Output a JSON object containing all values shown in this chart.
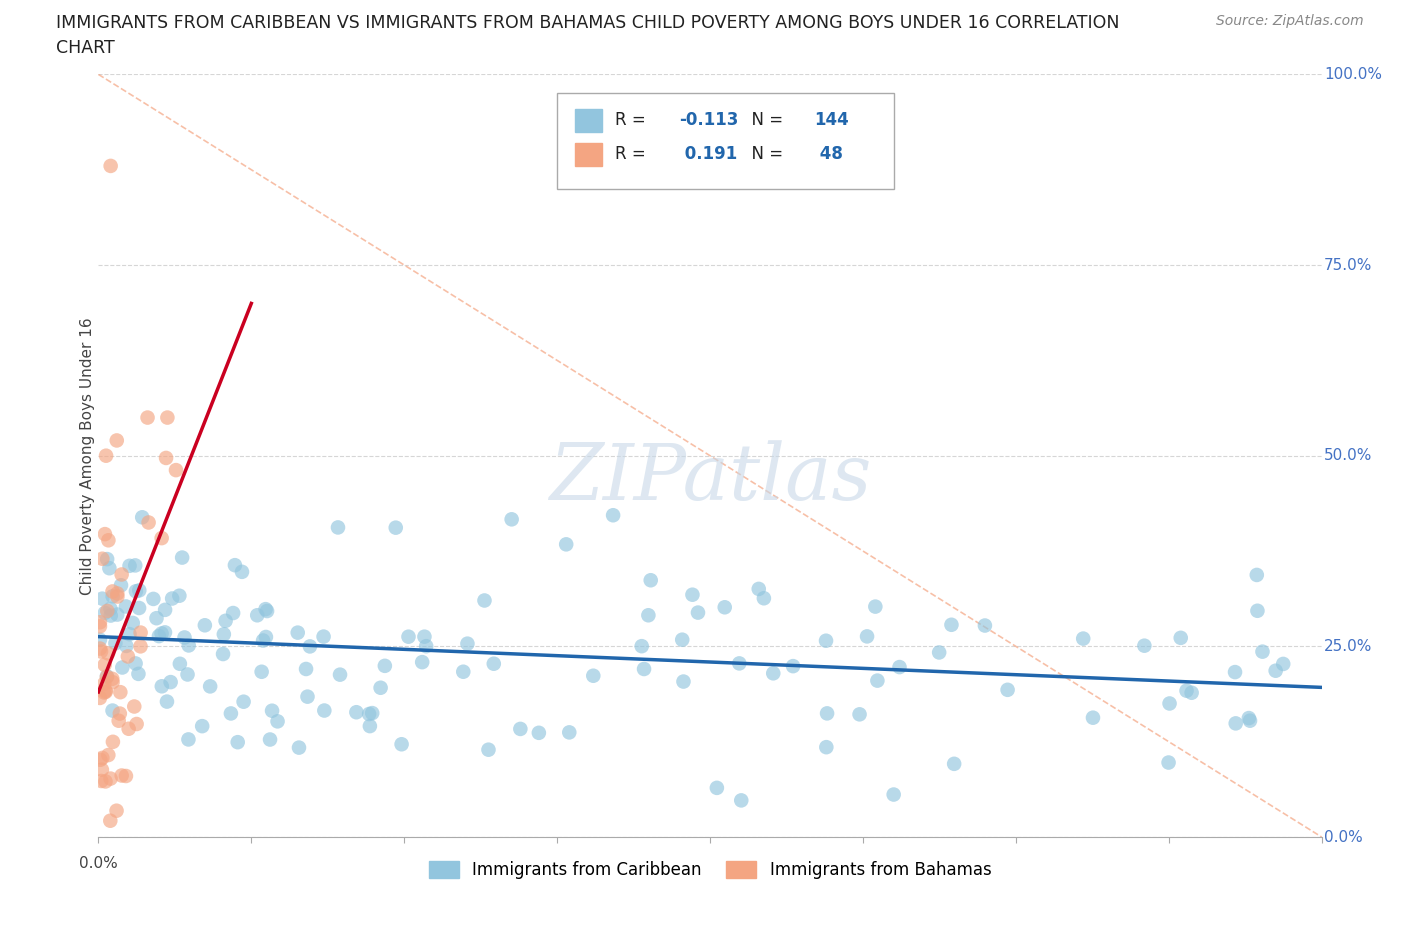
{
  "title_line1": "IMMIGRANTS FROM CARIBBEAN VS IMMIGRANTS FROM BAHAMAS CHILD POVERTY AMONG BOYS UNDER 16 CORRELATION",
  "title_line2": "CHART",
  "source": "Source: ZipAtlas.com",
  "ylabel": "Child Poverty Among Boys Under 16",
  "ytick_labels": [
    "0.0%",
    "25.0%",
    "50.0%",
    "75.0%",
    "100.0%"
  ],
  "ytick_values": [
    0.0,
    0.25,
    0.5,
    0.75,
    1.0
  ],
  "xlim": [
    0.0,
    0.8
  ],
  "ylim": [
    0.0,
    1.0
  ],
  "legend_label1": "Immigrants from Caribbean",
  "legend_label2": "Immigrants from Bahamas",
  "R1": -0.113,
  "N1": 144,
  "R2": 0.191,
  "N2": 48,
  "color_caribbean": "#92c5de",
  "color_bahamas": "#f4a582",
  "color_line1": "#2166ac",
  "color_line2": "#ca0020",
  "color_diag": "#f4a582",
  "watermark_color": "#c8d8e8",
  "grid_color": "#cccccc",
  "background_color": "#ffffff",
  "seed": 42
}
